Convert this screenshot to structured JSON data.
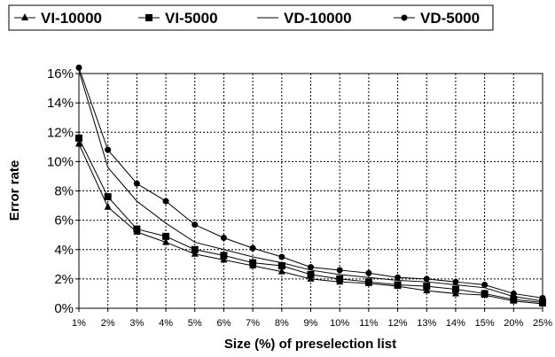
{
  "chart_data": {
    "type": "line",
    "title": "",
    "xlabel": "Size (%) of preselection list",
    "ylabel": "Error rate",
    "categories": [
      "1%",
      "2%",
      "3%",
      "4%",
      "5%",
      "6%",
      "7%",
      "8%",
      "9%",
      "10%",
      "11%",
      "12%",
      "13%",
      "14%",
      "15%",
      "20%",
      "25%"
    ],
    "yticks": [
      "0%",
      "2%",
      "4%",
      "6%",
      "8%",
      "10%",
      "12%",
      "14%",
      "16%"
    ],
    "ylim": [
      0,
      16
    ],
    "grid": true,
    "legend_position": "top",
    "series": [
      {
        "name": "VI-10000",
        "marker": "triangle",
        "values": [
          11.2,
          6.9,
          5.2,
          4.5,
          3.7,
          3.3,
          2.9,
          2.5,
          2.0,
          1.8,
          1.7,
          1.5,
          1.2,
          1.0,
          0.9,
          0.5,
          0.3
        ]
      },
      {
        "name": "VI-5000",
        "marker": "square",
        "values": [
          11.6,
          7.6,
          5.4,
          4.9,
          4.0,
          3.6,
          3.1,
          2.9,
          2.3,
          2.0,
          1.8,
          1.6,
          1.5,
          1.3,
          1.0,
          0.6,
          0.4
        ]
      },
      {
        "name": "VD-10000",
        "marker": "none",
        "values": [
          16.2,
          9.6,
          7.3,
          5.8,
          4.5,
          4.0,
          3.5,
          3.1,
          2.6,
          2.3,
          2.1,
          1.9,
          1.8,
          1.6,
          1.4,
          0.8,
          0.5
        ]
      },
      {
        "name": "VD-5000",
        "marker": "circle",
        "values": [
          16.4,
          10.8,
          8.5,
          7.3,
          5.7,
          4.8,
          4.1,
          3.5,
          2.8,
          2.6,
          2.4,
          2.1,
          2.0,
          1.8,
          1.6,
          1.0,
          0.7
        ]
      }
    ]
  }
}
